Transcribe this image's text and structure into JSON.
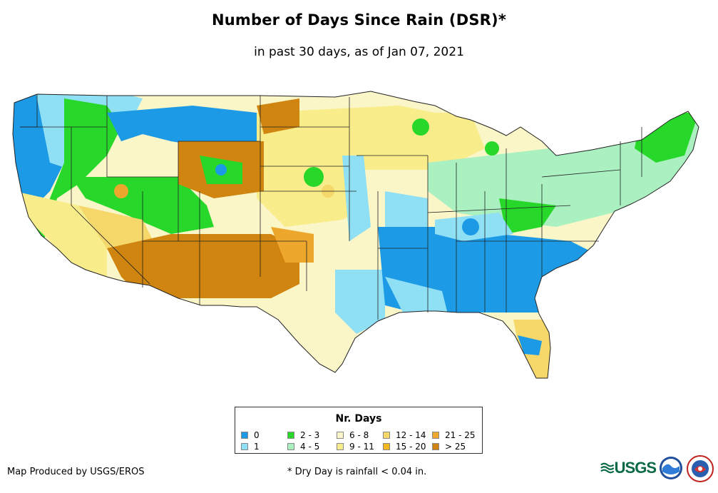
{
  "title": "Number of Days Since Rain (DSR)*",
  "subtitle": "in past 30 days, as of Jan 07, 2021",
  "legend": {
    "title": "Nr. Days",
    "items": [
      {
        "label": "0",
        "color": "#1c9ae6"
      },
      {
        "label": "1",
        "color": "#8fe0f5"
      },
      {
        "label": "2 - 3",
        "color": "#27d82a"
      },
      {
        "label": "4 - 5",
        "color": "#aaf0c0"
      },
      {
        "label": "6 - 8",
        "color": "#fbf6c8"
      },
      {
        "label": "9 - 11",
        "color": "#f9ec8a"
      },
      {
        "label": "12 - 14",
        "color": "#f5d76a"
      },
      {
        "label": "15 - 20",
        "color": "#f3b821"
      },
      {
        "label": "21 - 25",
        "color": "#eea72d"
      },
      {
        "label": "> 25",
        "color": "#cf8510"
      }
    ]
  },
  "footer": {
    "credit": "Map Produced by USGS/EROS",
    "note": "* Dry Day is rainfall < 0.04 in."
  },
  "logos": {
    "usgs_text": "USGS"
  }
}
